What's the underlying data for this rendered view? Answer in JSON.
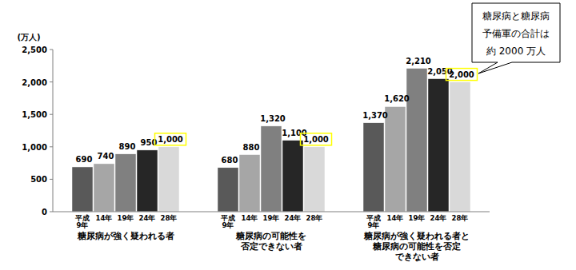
{
  "chart_data": {
    "type": "bar",
    "y_label": "(万人)",
    "categories": [
      "糖尿病が強く疑われる者",
      "糖尿病の可能性を\n否定できない者",
      "糖尿病が強く疑われる者と\n糖尿病の可能性を否定\nできない者"
    ],
    "series": [
      {
        "name": "平成\n9年",
        "color": "#595959",
        "values": [
          690,
          680,
          1370
        ],
        "value_labels": [
          "690",
          "680",
          "1,370"
        ]
      },
      {
        "name": "14年",
        "color": "#a6a6a6",
        "values": [
          740,
          880,
          1620
        ],
        "value_labels": [
          "740",
          "880",
          "1,620"
        ]
      },
      {
        "name": "19年",
        "color": "#808080",
        "values": [
          890,
          1320,
          2210
        ],
        "value_labels": [
          "890",
          "1,320",
          "2,210"
        ]
      },
      {
        "name": "24年",
        "color": "#262626",
        "values": [
          950,
          1100,
          2050
        ],
        "value_labels": [
          "950",
          "1,100",
          "2,050"
        ]
      },
      {
        "name": "28年",
        "color": "#d9d9d9",
        "values": [
          1000,
          1000,
          2000
        ],
        "value_labels": [
          "1,000",
          "1,000",
          "2,000"
        ]
      }
    ],
    "ylim": [
      0,
      2500
    ],
    "yticks": [
      0,
      500,
      {
        "value": 1000,
        "label": "1,000"
      },
      {
        "value": 1500,
        "label": "1,500"
      },
      {
        "value": 2000,
        "label": "2,000"
      },
      {
        "value": 2500,
        "label": "2,500"
      }
    ],
    "grid": false,
    "data_labels": true,
    "annotations": [
      {
        "text": "糖尿病と糖尿病\n予備軍の合計は\n約 2000 万人"
      }
    ]
  }
}
